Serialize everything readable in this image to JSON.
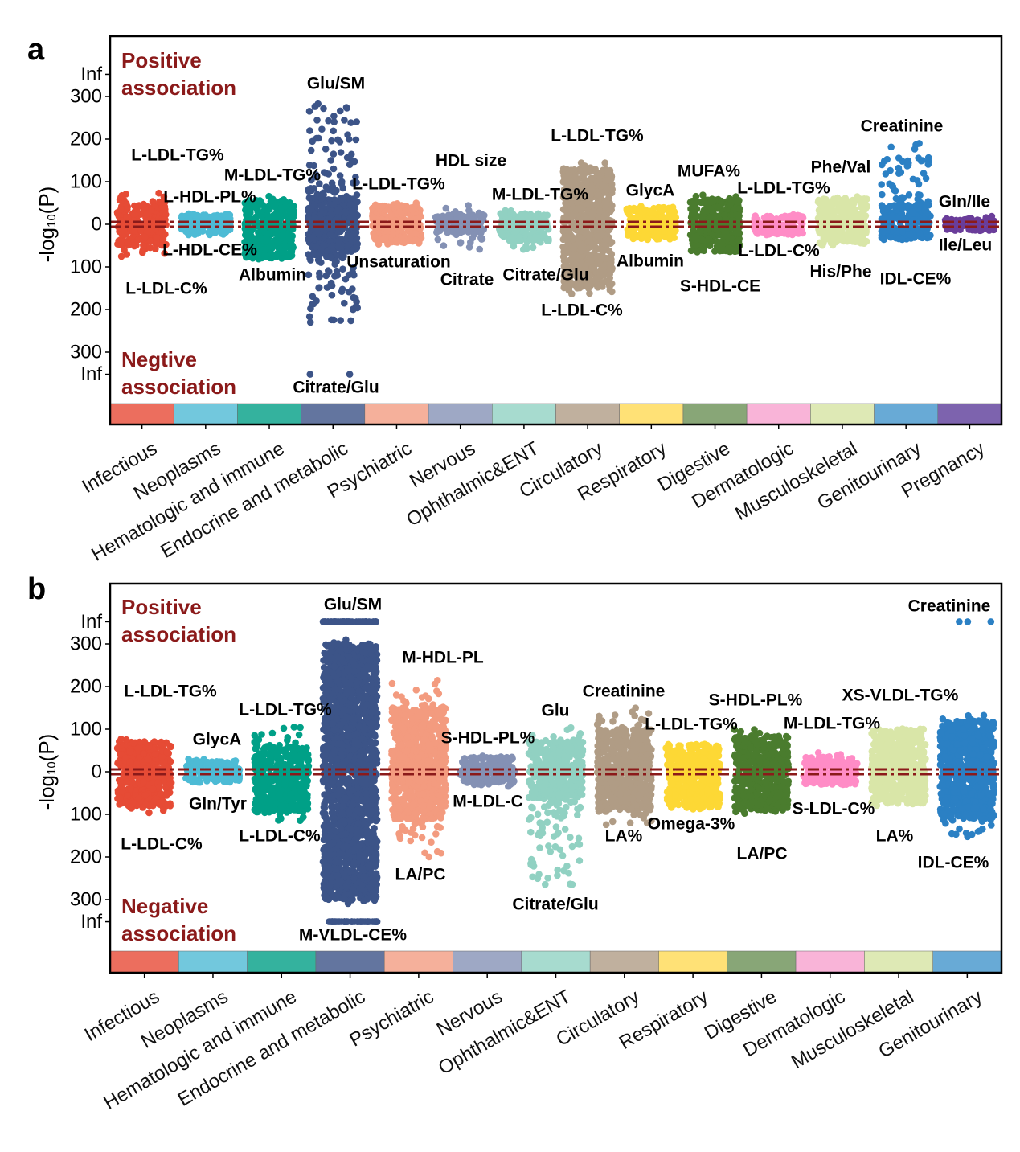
{
  "chart_data": [
    {
      "panel": "a",
      "type": "scatter",
      "subtype": "manhattan",
      "ylabel": "-log10(P)",
      "ytick_labels": [
        "Inf",
        "300",
        "200",
        "100",
        "0",
        "100",
        "200",
        "300",
        "Inf"
      ],
      "ytick_values": [
        "Inf",
        300,
        200,
        100,
        0,
        -100,
        -200,
        -300,
        "-Inf"
      ],
      "positive_label": [
        "Positive",
        "association"
      ],
      "negative_label": [
        "Negtive",
        "association"
      ],
      "threshold_line_color": "#8B1A1A",
      "grid": false,
      "categories": [
        {
          "name": "Infectious",
          "color": "#E64B35",
          "strip": "#EC6E5E",
          "bulk": [
            -50,
            45
          ],
          "tail": [
            -85,
            80
          ],
          "annotations": [
            {
              "label": "L-LDL-TG%",
              "value": 80
            },
            {
              "label": "L-LDL-C%",
              "value": -85
            }
          ]
        },
        {
          "name": "Neoplasms",
          "color": "#4DBBD5",
          "strip": "#72C8DD",
          "bulk": [
            -25,
            25
          ],
          "tail": [
            -25,
            25
          ],
          "annotations": [
            {
              "label": "L-HDL-PL%",
              "value": 30
            },
            {
              "label": "L-HDL-CE%",
              "value": -30
            }
          ]
        },
        {
          "name": "Hematologic and immune",
          "color": "#00A087",
          "strip": "#34B29E",
          "bulk": [
            -80,
            55
          ],
          "tail": [
            -85,
            75
          ],
          "annotations": [
            {
              "label": "M-LDL-TG%",
              "value": 75
            },
            {
              "label": "Albumin",
              "value": -85
            }
          ]
        },
        {
          "name": "Endocrine and metabolic",
          "color": "#3C5488",
          "strip": "#63759F",
          "bulk": [
            -75,
            60
          ],
          "tail": [
            -250,
            290
          ],
          "inf_pos": 0,
          "inf_neg": 2,
          "annotations": [
            {
              "label": "Glu/SM",
              "value": 290
            },
            {
              "label": "Citrate/Glu",
              "value": "-Inf"
            }
          ]
        },
        {
          "name": "Psychiatric",
          "color": "#F39B7F",
          "strip": "#F5B09B",
          "bulk": [
            -45,
            45
          ],
          "tail": [
            -50,
            55
          ],
          "annotations": [
            {
              "label": "L-LDL-TG%",
              "value": 55
            },
            {
              "label": "Unsaturation",
              "value": -50
            }
          ]
        },
        {
          "name": "Nervous",
          "color": "#8491B4",
          "strip": "#9EA8C5",
          "bulk": [
            -20,
            25
          ],
          "tail": [
            -60,
            45
          ],
          "annotations": [
            {
              "label": "HDL size",
              "value": 45
            },
            {
              "label": "Citrate",
              "value": -60
            }
          ]
        },
        {
          "name": "Ophthalmic&ENT",
          "color": "#91D1C2",
          "strip": "#A7DBCF",
          "bulk": [
            -40,
            25
          ],
          "tail": [
            -60,
            35
          ],
          "annotations": [
            {
              "label": "M-LDL-TG%",
              "value": 35
            },
            {
              "label": "Citrate/Glu",
              "value": -60
            }
          ]
        },
        {
          "name": "Circulatory",
          "color": "#B09C85",
          "strip": "#C0B09E",
          "bulk": [
            -150,
            130
          ],
          "tail": [
            -165,
            145
          ],
          "annotations": [
            {
              "label": "L-LDL-TG%",
              "value": 145
            },
            {
              "label": "L-LDL-C%",
              "value": -165
            }
          ]
        },
        {
          "name": "Respiratory",
          "color": "#FDD835",
          "strip": "#FFE176",
          "bulk": [
            -35,
            40
          ],
          "tail": [
            -40,
            45
          ],
          "annotations": [
            {
              "label": "GlycA",
              "value": 45
            },
            {
              "label": "Albumin",
              "value": -40
            }
          ]
        },
        {
          "name": "Digestive",
          "color": "#4A7C2E",
          "strip": "#88A677",
          "bulk": [
            -65,
            60
          ],
          "tail": [
            -65,
            70
          ],
          "annotations": [
            {
              "label": "MUFA%",
              "value": 70
            },
            {
              "label": "S-HDL-CE",
              "value": -65
            }
          ]
        },
        {
          "name": "Dermatologic",
          "color": "#FF8CC6",
          "strip": "#F9B4D8",
          "bulk": [
            -25,
            20
          ],
          "tail": [
            -25,
            25
          ],
          "annotations": [
            {
              "label": "L-LDL-TG%",
              "value": 25
            },
            {
              "label": "L-LDL-C%",
              "value": -25
            }
          ]
        },
        {
          "name": "Musculoskeletal",
          "color": "#D9E6A8",
          "strip": "#DEE9B5",
          "bulk": [
            -45,
            60
          ],
          "tail": [
            -50,
            70
          ],
          "annotations": [
            {
              "label": "Phe/Val",
              "value": 70
            },
            {
              "label": "His/Phe",
              "value": -50
            }
          ]
        },
        {
          "name": "Genitourinary",
          "color": "#2B80C4",
          "strip": "#68AAD6",
          "bulk": [
            -35,
            45
          ],
          "tail": [
            -40,
            190
          ],
          "annotations": [
            {
              "label": "Creatinine",
              "value": 190
            },
            {
              "label": "IDL-CE%",
              "value": -40
            }
          ]
        },
        {
          "name": "Pregnancy",
          "color": "#6A3D9A",
          "strip": "#7D63AE",
          "bulk": [
            -15,
            15
          ],
          "tail": [
            -15,
            20
          ],
          "annotations": [
            {
              "label": "Gln/Ile",
              "value": 20
            },
            {
              "label": "Ile/Leu",
              "value": -15
            }
          ]
        }
      ]
    },
    {
      "panel": "b",
      "type": "scatter",
      "subtype": "manhattan",
      "ylabel": "-log10(P)",
      "ytick_labels": [
        "Inf",
        "300",
        "200",
        "100",
        "0",
        "100",
        "200",
        "300",
        "Inf"
      ],
      "ytick_values": [
        "Inf",
        300,
        200,
        100,
        0,
        -100,
        -200,
        -300,
        "-Inf"
      ],
      "positive_label": [
        "Positive",
        "association"
      ],
      "negative_label": [
        "Negative",
        "association"
      ],
      "threshold_line_color": "#8B1A1A",
      "grid": false,
      "categories": [
        {
          "name": "Infectious",
          "color": "#E64B35",
          "strip": "#EC6E5E",
          "bulk": [
            -80,
            70
          ],
          "tail": [
            -100,
            85
          ],
          "annotations": [
            {
              "label": "L-LDL-TG%",
              "value": 85
            },
            {
              "label": "L-LDL-C%",
              "value": -100
            }
          ]
        },
        {
          "name": "Neoplasms",
          "color": "#4DBBD5",
          "strip": "#72C8DD",
          "bulk": [
            -25,
            25
          ],
          "tail": [
            -25,
            35
          ],
          "annotations": [
            {
              "label": "GlycA",
              "value": 35
            },
            {
              "label": "Gln/Tyr",
              "value": -25
            }
          ]
        },
        {
          "name": "Hematologic and immune",
          "color": "#00A087",
          "strip": "#34B29E",
          "bulk": [
            -95,
            60
          ],
          "tail": [
            -115,
            105
          ],
          "annotations": [
            {
              "label": "L-LDL-TG%",
              "value": 105
            },
            {
              "label": "L-LDL-C%",
              "value": -115
            }
          ]
        },
        {
          "name": "Endocrine and metabolic",
          "color": "#3C5488",
          "strip": "#63759F",
          "bulk": [
            -300,
            300
          ],
          "tail": [
            -310,
            310
          ],
          "inf_pos": 45,
          "inf_neg": 45,
          "annotations": [
            {
              "label": "Glu/SM",
              "value": "Inf"
            },
            {
              "label": "M-VLDL-CE%",
              "value": "-Inf"
            }
          ]
        },
        {
          "name": "Psychiatric",
          "color": "#F39B7F",
          "strip": "#F5B09B",
          "bulk": [
            -110,
            150
          ],
          "tail": [
            -200,
            215
          ],
          "annotations": [
            {
              "label": "M-HDL-PL",
              "value": 215
            },
            {
              "label": "LA/PC",
              "value": -200
            }
          ]
        },
        {
          "name": "Nervous",
          "color": "#8491B4",
          "strip": "#9EA8C5",
          "bulk": [
            -30,
            35
          ],
          "tail": [
            -35,
            40
          ],
          "annotations": [
            {
              "label": "S-HDL-PL%",
              "value": 40
            },
            {
              "label": "M-LDL-C",
              "value": -35
            }
          ]
        },
        {
          "name": "Ophthalmic&ENT",
          "color": "#91D1C2",
          "strip": "#A7DBCF",
          "bulk": [
            -65,
            70
          ],
          "tail": [
            -280,
            105
          ],
          "annotations": [
            {
              "label": "Glu",
              "value": 105
            },
            {
              "label": "Citrate/Glu",
              "value": -280
            }
          ]
        },
        {
          "name": "Circulatory",
          "color": "#B09C85",
          "strip": "#C0B09E",
          "bulk": [
            -90,
            100
          ],
          "tail": [
            -125,
            150
          ],
          "annotations": [
            {
              "label": "Creatinine",
              "value": 150
            },
            {
              "label": "LA%",
              "value": -125
            }
          ]
        },
        {
          "name": "Respiratory",
          "color": "#FDD835",
          "strip": "#FFE176",
          "bulk": [
            -85,
            65
          ],
          "tail": [
            -90,
            65
          ],
          "annotations": [
            {
              "label": "L-LDL-TG%",
              "value": 65
            },
            {
              "label": "Omega-3%",
              "value": -90
            }
          ]
        },
        {
          "name": "Digestive",
          "color": "#4A7C2E",
          "strip": "#88A677",
          "bulk": [
            -90,
            85
          ],
          "tail": [
            -105,
            100
          ],
          "annotations": [
            {
              "label": "S-HDL-PL%",
              "value": 100
            },
            {
              "label": "LA/PC",
              "value": -105
            }
          ]
        },
        {
          "name": "Dermatologic",
          "color": "#FF8CC6",
          "strip": "#F9B4D8",
          "bulk": [
            -30,
            35
          ],
          "tail": [
            -30,
            45
          ],
          "annotations": [
            {
              "label": "M-LDL-TG%",
              "value": 45
            },
            {
              "label": "S-LDL-C%",
              "value": -30
            }
          ]
        },
        {
          "name": "Musculoskeletal",
          "color": "#D9E6A8",
          "strip": "#DEE9B5",
          "bulk": [
            -75,
            100
          ],
          "tail": [
            -80,
            105
          ],
          "annotations": [
            {
              "label": "XS-VLDL-TG%",
              "value": 105
            },
            {
              "label": "LA%",
              "value": -80
            }
          ]
        },
        {
          "name": "Genitourinary",
          "color": "#2B80C4",
          "strip": "#68AAD6",
          "bulk": [
            -110,
            120
          ],
          "tail": [
            -155,
            135
          ],
          "inf_pos": 3,
          "inf_neg": 0,
          "annotations": [
            {
              "label": "Creatinine",
              "value": "Inf"
            },
            {
              "label": "IDL-CE%",
              "value": -155
            }
          ]
        }
      ]
    }
  ]
}
